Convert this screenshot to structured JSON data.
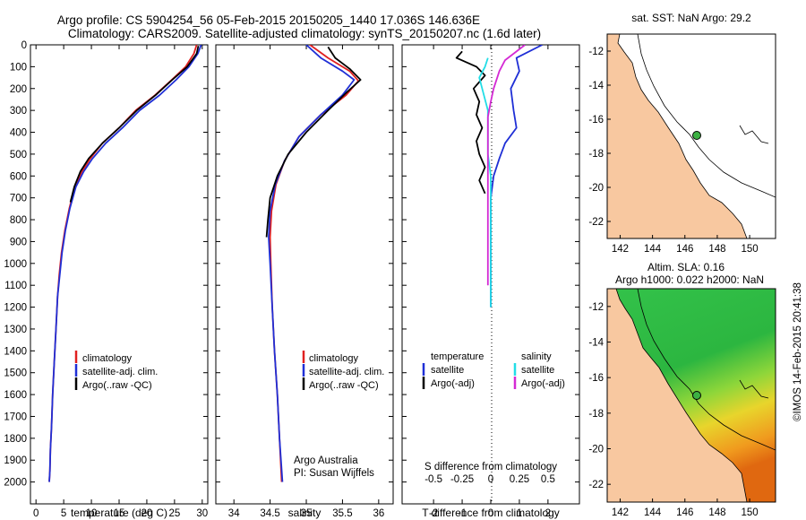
{
  "header": {
    "line1": "Argo profile: CS 5904254_56 05-Feb-2015 20150205_1440 17.036S 146.636E",
    "line2": "Climatology: CARS2009. Satellite-adjusted climatology: synTS_20150207.nc (1.6d later)"
  },
  "footer": {
    "imos_stamp": "©IMOS 14-Feb-2015 20:41:38",
    "credit1": "Argo Australia",
    "credit2": "PI: Susan Wijffels"
  },
  "colors": {
    "climatology": "#e02020",
    "satellite": "#1f2fd6",
    "argo": "#000000",
    "sat_salinity": "#22dde6",
    "argo_salinity": "#d42ad4",
    "land": "#f8c8a0",
    "float_marker": "#3cb043"
  },
  "chart_data": [
    {
      "id": "temperature",
      "type": "line",
      "xlabel": "temperature (deg C)",
      "ylabel": "depth",
      "xlim": [
        -1,
        31
      ],
      "ylim": [
        2100,
        0
      ],
      "xticks": [
        0,
        5,
        10,
        15,
        20,
        25,
        30
      ],
      "yticks": [
        0,
        100,
        200,
        300,
        400,
        500,
        600,
        700,
        800,
        900,
        1000,
        1100,
        1200,
        1300,
        1400,
        1500,
        1600,
        1700,
        1800,
        1900,
        2000
      ],
      "legend": [
        "climatology",
        "satellite-adj. clim.",
        "Argo(..raw -QC)"
      ],
      "series": [
        {
          "name": "climatology",
          "color_key": "climatology",
          "points": [
            [
              29.0,
              0
            ],
            [
              28.5,
              40
            ],
            [
              27.0,
              100
            ],
            [
              24.5,
              160
            ],
            [
              21.5,
              230
            ],
            [
              18.0,
              300
            ],
            [
              15.0,
              380
            ],
            [
              12.0,
              450
            ],
            [
              9.8,
              520
            ],
            [
              8.3,
              580
            ],
            [
              7.0,
              650
            ],
            [
              6.0,
              750
            ],
            [
              5.2,
              850
            ],
            [
              4.6,
              950
            ],
            [
              4.2,
              1050
            ],
            [
              3.9,
              1150
            ],
            [
              3.6,
              1300
            ],
            [
              3.3,
              1450
            ],
            [
              3.0,
              1600
            ],
            [
              2.8,
              1750
            ],
            [
              2.6,
              1850
            ],
            [
              2.5,
              1950
            ],
            [
              2.4,
              2000
            ]
          ]
        },
        {
          "name": "satellite-adj. clim.",
          "color_key": "satellite",
          "points": [
            [
              29.8,
              0
            ],
            [
              29.2,
              40
            ],
            [
              27.6,
              100
            ],
            [
              25.3,
              160
            ],
            [
              22.3,
              230
            ],
            [
              18.7,
              300
            ],
            [
              15.6,
              380
            ],
            [
              12.6,
              450
            ],
            [
              10.2,
              520
            ],
            [
              8.6,
              580
            ],
            [
              7.2,
              650
            ],
            [
              6.1,
              750
            ],
            [
              5.3,
              850
            ],
            [
              4.7,
              950
            ],
            [
              4.3,
              1050
            ],
            [
              3.9,
              1150
            ],
            [
              3.6,
              1300
            ],
            [
              3.3,
              1450
            ],
            [
              3.0,
              1600
            ],
            [
              2.8,
              1750
            ],
            [
              2.6,
              1850
            ],
            [
              2.5,
              1950
            ],
            [
              2.4,
              2000
            ]
          ]
        },
        {
          "name": "Argo(..raw -QC)",
          "color_key": "argo",
          "points": [
            [
              29.3,
              5
            ],
            [
              29.0,
              40
            ],
            [
              27.3,
              100
            ],
            [
              24.6,
              160
            ],
            [
              21.6,
              230
            ],
            [
              18.2,
              300
            ],
            [
              15.0,
              380
            ],
            [
              12.0,
              450
            ],
            [
              9.5,
              520
            ],
            [
              8.0,
              580
            ],
            [
              6.9,
              650
            ],
            [
              6.2,
              720
            ]
          ]
        }
      ]
    },
    {
      "id": "salinity",
      "type": "line",
      "xlabel": "salinity",
      "ylabel": "depth",
      "xlim": [
        33.75,
        36.2
      ],
      "ylim": [
        2100,
        0
      ],
      "xticks": [
        34,
        34.5,
        35,
        35.5,
        36
      ],
      "legend": [
        "climatology",
        "satellite-adj. clim.",
        "Argo(..raw -QC)"
      ],
      "series": [
        {
          "name": "climatology",
          "color_key": "climatology",
          "points": [
            [
              35.05,
              0
            ],
            [
              35.3,
              60
            ],
            [
              35.6,
              120
            ],
            [
              35.72,
              165
            ],
            [
              35.55,
              230
            ],
            [
              35.2,
              320
            ],
            [
              34.9,
              420
            ],
            [
              34.7,
              530
            ],
            [
              34.58,
              640
            ],
            [
              34.52,
              760
            ],
            [
              34.5,
              880
            ],
            [
              34.51,
              1000
            ],
            [
              34.53,
              1200
            ],
            [
              34.56,
              1400
            ],
            [
              34.6,
              1600
            ],
            [
              34.63,
              1800
            ],
            [
              34.66,
              2000
            ]
          ]
        },
        {
          "name": "satellite-adj. clim.",
          "color_key": "satellite",
          "points": [
            [
              35.0,
              0
            ],
            [
              35.2,
              60
            ],
            [
              35.5,
              120
            ],
            [
              35.66,
              160
            ],
            [
              35.5,
              230
            ],
            [
              35.2,
              320
            ],
            [
              34.9,
              420
            ],
            [
              34.7,
              530
            ],
            [
              34.57,
              640
            ],
            [
              34.5,
              760
            ],
            [
              34.48,
              880
            ],
            [
              34.5,
              1000
            ],
            [
              34.53,
              1200
            ],
            [
              34.56,
              1400
            ],
            [
              34.6,
              1600
            ],
            [
              34.63,
              1800
            ],
            [
              34.67,
              2000
            ]
          ]
        },
        {
          "name": "Argo(..raw -QC)",
          "color_key": "argo",
          "points": [
            [
              35.3,
              10
            ],
            [
              35.4,
              60
            ],
            [
              35.6,
              110
            ],
            [
              35.75,
              160
            ],
            [
              35.55,
              220
            ],
            [
              35.3,
              300
            ],
            [
              35.0,
              400
            ],
            [
              34.75,
              500
            ],
            [
              34.6,
              600
            ],
            [
              34.5,
              700
            ],
            [
              34.47,
              800
            ],
            [
              34.45,
              880
            ]
          ]
        }
      ]
    },
    {
      "id": "differences",
      "type": "line",
      "xlabel": "T difference from climatology",
      "xlabel2": "S difference from climatology",
      "ylabel": "depth",
      "xlim": [
        -3.1,
        3.1
      ],
      "ylim": [
        2100,
        0
      ],
      "xticks": [
        -2,
        -1,
        0,
        1,
        2
      ],
      "x2ticks": [
        -0.5,
        -0.25,
        0,
        0.25,
        0.5
      ],
      "legend_header_t": "temperature",
      "legend_header_s": "salinity",
      "legend": [
        "satellite",
        "Argo(-adj)",
        "satellite",
        "Argo(-adj)"
      ],
      "series": [
        {
          "name": "satellite",
          "group": "temperature",
          "color_key": "satellite",
          "points": [
            [
              1.8,
              0
            ],
            [
              0.9,
              60
            ],
            [
              1.0,
              120
            ],
            [
              0.7,
              200
            ],
            [
              0.8,
              300
            ],
            [
              0.9,
              380
            ],
            [
              0.5,
              450
            ],
            [
              0.3,
              520
            ],
            [
              0.1,
              600
            ],
            [
              0.0,
              700
            ],
            [
              0.0,
              850
            ],
            [
              0.0,
              1000
            ],
            [
              0.0,
              1150
            ],
            [
              0.0,
              1200
            ]
          ]
        },
        {
          "name": "Argo(-adj)",
          "group": "temperature",
          "color_key": "argo",
          "points": [
            [
              -1.0,
              30
            ],
            [
              -1.2,
              60
            ],
            [
              -0.5,
              100
            ],
            [
              -0.2,
              140
            ],
            [
              -0.6,
              200
            ],
            [
              -0.4,
              260
            ],
            [
              -0.5,
              320
            ],
            [
              -0.3,
              380
            ],
            [
              -0.5,
              440
            ],
            [
              -0.4,
              500
            ],
            [
              -0.2,
              560
            ],
            [
              -0.4,
              620
            ],
            [
              -0.2,
              680
            ]
          ]
        },
        {
          "name": "satellite",
          "group": "salinity",
          "color_key": "sat_salinity",
          "points": [
            [
              -0.1,
              60
            ],
            [
              -0.2,
              100
            ],
            [
              -0.4,
              150
            ],
            [
              -0.3,
              200
            ],
            [
              -0.1,
              300
            ],
            [
              -0.1,
              400
            ],
            [
              -0.1,
              500
            ],
            [
              0.0,
              600
            ],
            [
              0.0,
              800
            ],
            [
              0.0,
              1000
            ],
            [
              0.0,
              1200
            ]
          ]
        },
        {
          "name": "Argo(-adj)",
          "group": "salinity",
          "color_key": "argo_salinity",
          "points": [
            [
              1.2,
              0
            ],
            [
              0.5,
              70
            ],
            [
              0.3,
              120
            ],
            [
              0.1,
              200
            ],
            [
              0.0,
              260
            ],
            [
              -0.1,
              330
            ],
            [
              -0.1,
              420
            ],
            [
              -0.1,
              520
            ],
            [
              -0.1,
              620
            ],
            [
              -0.1,
              760
            ],
            [
              -0.1,
              900
            ],
            [
              -0.1,
              1000
            ],
            [
              -0.1,
              1100
            ]
          ]
        }
      ]
    },
    {
      "id": "sst_map",
      "type": "map",
      "title": "sat. SST: NaN Argo: 29.2",
      "xlim": [
        141.2,
        151.6
      ],
      "ylim": [
        -23.0,
        -11.0
      ],
      "xticks": [
        142,
        144,
        146,
        148,
        150
      ],
      "yticks": [
        -12,
        -14,
        -16,
        -18,
        -20,
        -22
      ],
      "float_position": [
        146.636,
        -17.036
      ]
    },
    {
      "id": "sla_map",
      "type": "map",
      "title": "Altim. SLA: 0.16",
      "subtitle": "Argo h1000: 0.022 h2000: NaN",
      "xlim": [
        141.2,
        151.6
      ],
      "ylim": [
        -23.0,
        -11.0
      ],
      "xticks": [
        142,
        144,
        146,
        148,
        150
      ],
      "yticks": [
        -12,
        -14,
        -16,
        -18,
        -20,
        -22
      ],
      "float_position": [
        146.636,
        -17.036
      ]
    }
  ]
}
